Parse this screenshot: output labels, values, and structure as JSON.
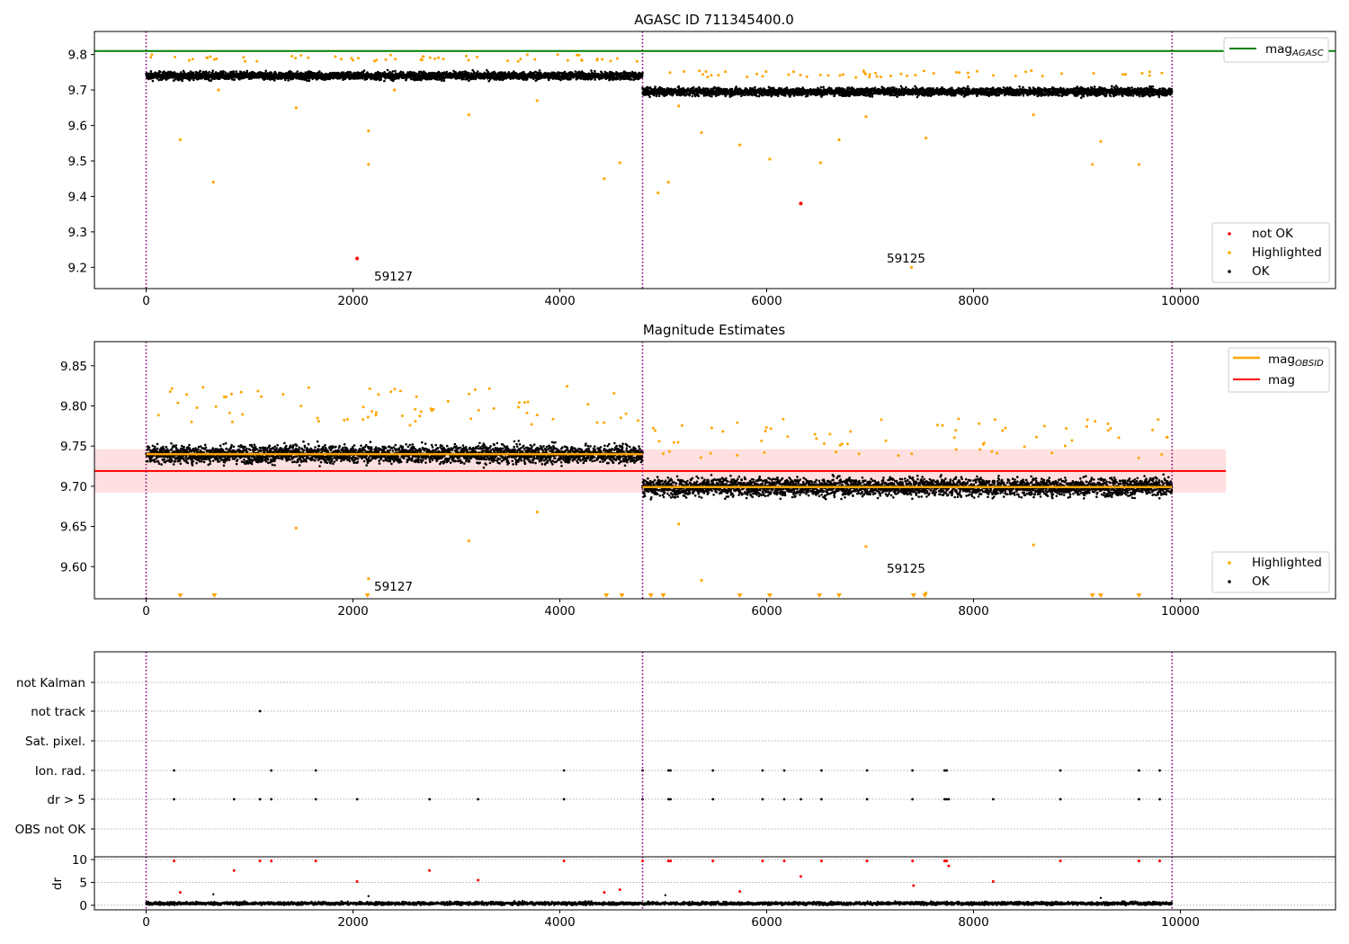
{
  "chart_data": [
    {
      "type": "scatter",
      "title": "AGASC ID 711345400.0",
      "xlim": [
        -500,
        11500
      ],
      "ylim": [
        9.14,
        9.865
      ],
      "xticks": [
        0,
        2000,
        4000,
        6000,
        8000,
        10000
      ],
      "yticks": [
        9.2,
        9.3,
        9.4,
        9.5,
        9.6,
        9.7,
        9.8
      ],
      "vlines": [
        0,
        4800,
        9920
      ],
      "hlines": [
        {
          "name": "mag_AGASC",
          "y": 9.81,
          "color": "#008000"
        }
      ],
      "legend_position": "top-right",
      "legend_lower": "lower-right",
      "segments": [
        {
          "x": [
            0,
            4800
          ],
          "center": 9.74,
          "spread": 0.02
        },
        {
          "x": [
            4800,
            9920
          ],
          "center": 9.695,
          "spread": 0.02
        }
      ],
      "series": [
        {
          "name": "not OK",
          "color": "#ff0000",
          "points": [
            [
              2040,
              9.225
            ],
            [
              6330,
              9.38
            ]
          ]
        },
        {
          "name": "Highlighted",
          "color": "#ffa500",
          "points": [
            [
              330,
              9.56
            ],
            [
              650,
              9.44
            ],
            [
              700,
              9.7
            ],
            [
              1450,
              9.65
            ],
            [
              2150,
              9.585
            ],
            [
              2150,
              9.49
            ],
            [
              2400,
              9.7
            ],
            [
              3120,
              9.63
            ],
            [
              3780,
              9.67
            ],
            [
              4430,
              9.45
            ],
            [
              4580,
              9.495
            ],
            [
              5370,
              9.58
            ],
            [
              4950,
              9.41
            ],
            [
              5050,
              9.44
            ],
            [
              5150,
              9.655
            ],
            [
              5740,
              9.545
            ],
            [
              6030,
              9.505
            ],
            [
              6520,
              9.495
            ],
            [
              6700,
              9.56
            ],
            [
              6960,
              9.625
            ],
            [
              7400,
              9.2
            ],
            [
              7540,
              9.565
            ],
            [
              8580,
              9.63
            ],
            [
              9150,
              9.49
            ],
            [
              9230,
              9.555
            ],
            [
              9600,
              9.49
            ]
          ]
        },
        {
          "name": "OK",
          "color": "#000000"
        }
      ],
      "annotations": [
        {
          "text": "59127",
          "x": 2200,
          "y": 9.19
        },
        {
          "text": "59125",
          "x": 7140,
          "y": 9.215
        }
      ]
    },
    {
      "type": "scatter",
      "title": "Magnitude Estimates",
      "xlim": [
        -500,
        11500
      ],
      "ylim": [
        9.56,
        9.88
      ],
      "xticks": [
        0,
        2000,
        4000,
        6000,
        8000,
        10000
      ],
      "yticks": [
        9.6,
        9.65,
        9.7,
        9.75,
        9.8,
        9.85
      ],
      "vlines": [
        0,
        4800,
        9920
      ],
      "band": {
        "x": [
          -500,
          10440
        ],
        "y": [
          9.692,
          9.746
        ]
      },
      "hlines": [
        {
          "name": "mag_OBSID",
          "color": "#ffa500",
          "segments": [
            [
              0,
              4800,
              9.74
            ],
            [
              4800,
              9920,
              9.699
            ]
          ]
        },
        {
          "name": "mag",
          "color": "#ff0000",
          "segments": [
            [
              -500,
              10440,
              9.719
            ]
          ]
        }
      ],
      "legend_position": "top-right",
      "legend_lower": "lower-right",
      "series": [
        {
          "name": "Highlighted",
          "color": "#ffa500"
        },
        {
          "name": "OK",
          "color": "#000000"
        }
      ],
      "out_of_range_markers": [
        330,
        660,
        2140,
        4450,
        4600,
        4880,
        5000,
        5740,
        6030,
        6510,
        6700,
        7420,
        7530,
        9150,
        9230,
        9600
      ],
      "annotations": [
        {
          "text": "59127",
          "x": 2200,
          "y": 9.575
        },
        {
          "text": "59125",
          "x": 7140,
          "y": 9.59
        }
      ]
    },
    {
      "type": "scatter",
      "xlim": [
        -500,
        11500
      ],
      "categories": [
        "not Kalman",
        "not track",
        "Sat. pixel.",
        "Ion. rad.",
        "dr > 5",
        "OBS not OK"
      ],
      "vlines": [
        0,
        4800,
        9920
      ],
      "flags": {
        "not track": [
          1100
        ],
        "Ion. rad.": [
          270,
          1210,
          1640,
          4040,
          4800,
          5050,
          5070,
          5480,
          5960,
          6170,
          6530,
          6970,
          7410,
          7720,
          7740,
          8840,
          9600,
          9800
        ],
        "dr > 5": [
          270,
          850,
          1100,
          1210,
          1640,
          2040,
          2740,
          3210,
          4040,
          4800,
          5050,
          5070,
          5480,
          5960,
          6170,
          6330,
          6530,
          6970,
          7410,
          7720,
          7740,
          7760,
          8190,
          8840,
          9600,
          9800
        ]
      }
    },
    {
      "type": "scatter",
      "ylabel": "dr",
      "xlim": [
        -500,
        11500
      ],
      "ylim": [
        -1,
        10.6
      ],
      "xticks": [
        0,
        2000,
        4000,
        6000,
        8000,
        10000
      ],
      "yticks": [
        0,
        5,
        10
      ],
      "vlines": [
        0,
        4800,
        9920
      ],
      "series": [
        {
          "name": "dr > 5",
          "color": "#ff0000",
          "points": [
            [
              270,
              9.7
            ],
            [
              330,
              2.8
            ],
            [
              850,
              7.6
            ],
            [
              1100,
              9.7
            ],
            [
              1210,
              9.7
            ],
            [
              1640,
              9.7
            ],
            [
              2040,
              5.2
            ],
            [
              2740,
              7.6
            ],
            [
              3210,
              5.5
            ],
            [
              4040,
              9.7
            ],
            [
              4430,
              2.8
            ],
            [
              4580,
              3.4
            ],
            [
              4800,
              9.7
            ],
            [
              5050,
              9.7
            ],
            [
              5070,
              9.7
            ],
            [
              5480,
              9.7
            ],
            [
              5740,
              3.0
            ],
            [
              5960,
              9.7
            ],
            [
              6170,
              9.7
            ],
            [
              6330,
              6.3
            ],
            [
              6530,
              9.7
            ],
            [
              6970,
              9.7
            ],
            [
              7410,
              9.7
            ],
            [
              7420,
              4.3
            ],
            [
              7720,
              9.7
            ],
            [
              7740,
              9.7
            ],
            [
              7760,
              8.6
            ],
            [
              8190,
              5.2
            ],
            [
              8840,
              9.7
            ],
            [
              9600,
              9.7
            ],
            [
              9800,
              9.7
            ]
          ]
        },
        {
          "name": "OK",
          "color": "#000000",
          "baseline": 0.4
        }
      ]
    }
  ],
  "labels": {
    "legend_mag_agasc_base": "mag",
    "legend_mag_agasc_sub": "AGASC",
    "legend_mag_obsid_base": "mag",
    "legend_mag_obsid_sub": "OBSID",
    "legend_mag": "mag",
    "legend_not_ok": "not OK",
    "legend_highlighted": "Highlighted",
    "legend_ok": "OK"
  }
}
